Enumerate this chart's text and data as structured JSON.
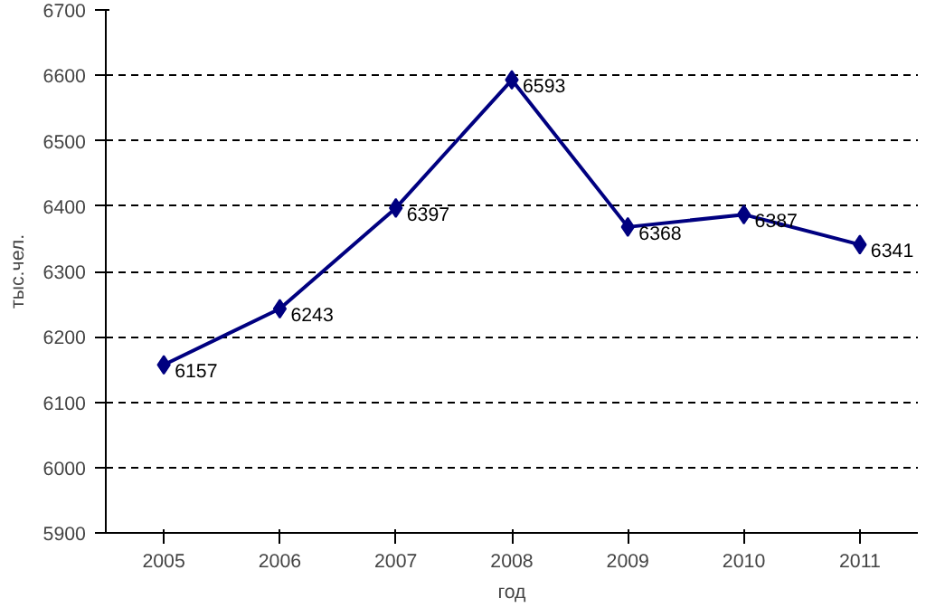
{
  "chart_data": {
    "type": "line",
    "xlabel": "год",
    "ylabel": "тыс.чел.",
    "categories": [
      "2005",
      "2006",
      "2007",
      "2008",
      "2009",
      "2010",
      "2011"
    ],
    "series": [
      {
        "color": "#000080",
        "values": [
          6157,
          6243,
          6397,
          6593,
          6368,
          6387,
          6341
        ]
      }
    ],
    "ylim": [
      5900,
      6700
    ],
    "yticks": [
      5900,
      6000,
      6100,
      6200,
      6300,
      6400,
      6500,
      6600,
      6700
    ],
    "grid": "y",
    "marker": "diamond",
    "line_style": "solid",
    "data_labels": true
  }
}
